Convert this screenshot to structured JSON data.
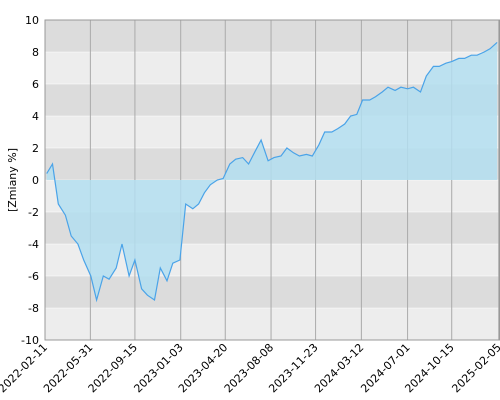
{
  "chart_data": {
    "type": "area",
    "y_label": "[Zmiany %]",
    "x": [
      "2022-02-15",
      "2022-03-01",
      "2022-03-15",
      "2022-04-01",
      "2022-04-15",
      "2022-05-01",
      "2022-05-15",
      "2022-06-01",
      "2022-06-15",
      "2022-07-01",
      "2022-07-15",
      "2022-08-01",
      "2022-08-15",
      "2022-09-01",
      "2022-09-15",
      "2022-10-01",
      "2022-10-15",
      "2022-11-01",
      "2022-11-15",
      "2022-12-01",
      "2022-12-15",
      "2023-01-01",
      "2023-01-15",
      "2023-02-01",
      "2023-02-15",
      "2023-03-01",
      "2023-03-15",
      "2023-04-01",
      "2023-04-15",
      "2023-05-01",
      "2023-05-15",
      "2023-06-01",
      "2023-06-15",
      "2023-07-01",
      "2023-07-15",
      "2023-08-01",
      "2023-08-15",
      "2023-09-01",
      "2023-09-15",
      "2023-10-01",
      "2023-10-15",
      "2023-11-01",
      "2023-11-15",
      "2023-12-01",
      "2023-12-15",
      "2024-01-01",
      "2024-01-15",
      "2024-02-01",
      "2024-02-15",
      "2024-03-01",
      "2024-03-15",
      "2024-04-01",
      "2024-04-15",
      "2024-05-01",
      "2024-05-15",
      "2024-06-01",
      "2024-06-15",
      "2024-07-01",
      "2024-07-15",
      "2024-08-01",
      "2024-08-15",
      "2024-09-01",
      "2024-09-15",
      "2024-10-01",
      "2024-10-15",
      "2024-11-01",
      "2024-11-15",
      "2024-12-01",
      "2024-12-15",
      "2025-01-01",
      "2025-01-15",
      "2025-02-01"
    ],
    "series": [
      {
        "color": "#4aa3e8",
        "fill": "#b3def0",
        "values": [
          0.4,
          1.0,
          -1.5,
          -2.2,
          -3.5,
          -4,
          -5,
          -6,
          -7.5,
          -6,
          -6.2,
          -5.5,
          -4,
          -6,
          -5,
          -6.8,
          -7.2,
          -7.5,
          -5.5,
          -6.3,
          -5.2,
          -5,
          -1.5,
          -1.8,
          -1.5,
          -0.8,
          -0.3,
          0,
          0.1,
          1,
          1.3,
          1.4,
          1,
          1.8,
          2.5,
          1.2,
          1.4,
          1.5,
          2,
          1.7,
          1.5,
          1.6,
          1.5,
          2.2,
          3,
          3,
          3.2,
          3.5,
          4,
          4.1,
          5,
          5,
          5.2,
          5.5,
          5.8,
          5.6,
          5.8,
          5.7,
          5.8,
          5.5,
          6.5,
          7.1,
          7.1,
          7.3,
          7.4,
          7.6,
          7.6,
          7.8,
          7.8,
          8,
          8.2,
          8.6
        ]
      }
    ],
    "xlim": [
      "2022-02-11",
      "2025-02-08"
    ],
    "xticks": [
      "2022-02-11",
      "2022-05-31",
      "2022-09-15",
      "2023-01-03",
      "2023-04-20",
      "2023-08-08",
      "2023-11-23",
      "2024-03-12",
      "2024-07-01",
      "2024-10-15",
      "2025-02-05"
    ],
    "ylim": [
      -10,
      10
    ],
    "yticks": [
      -10,
      -8,
      -6,
      -4,
      -2,
      0,
      2,
      4,
      6,
      8,
      10
    ],
    "grid": true
  }
}
